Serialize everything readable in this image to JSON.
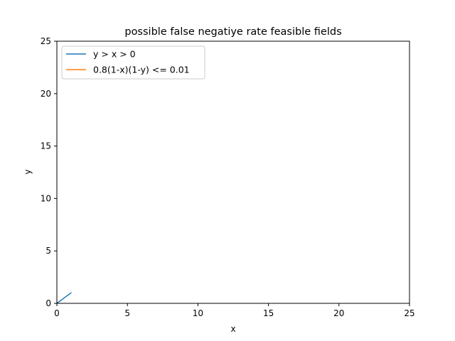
{
  "chart_data": {
    "type": "line",
    "title": "possible false negatiye rate feasible fields",
    "xlabel": "x",
    "ylabel": "y",
    "xlim": [
      0,
      25
    ],
    "ylim": [
      0,
      25
    ],
    "xticks": [
      0,
      5,
      10,
      15,
      20,
      25
    ],
    "yticks": [
      0,
      5,
      10,
      15,
      20,
      25
    ],
    "grid": false,
    "legend_position": "top-left",
    "series": [
      {
        "name": "y > x > 0",
        "color": "#1f77b4",
        "x": [
          0,
          1
        ],
        "y": [
          0,
          1
        ]
      },
      {
        "name": "0.8(1-x)(1-y) <= 0.01",
        "color": "#ff7f0e",
        "x": [],
        "y": []
      }
    ]
  }
}
